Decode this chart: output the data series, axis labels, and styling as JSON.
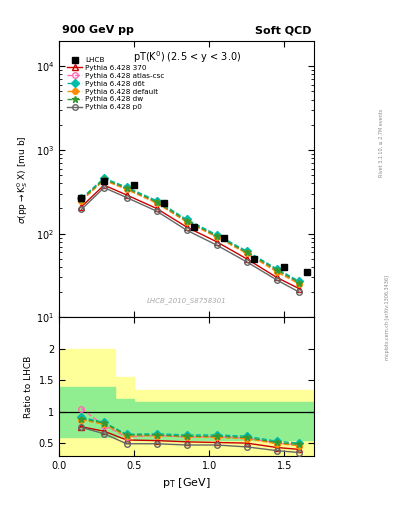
{
  "title_left": "900 GeV pp",
  "title_right": "Soft QCD",
  "subtitle": "pT(K¹) (2.5 < y < 3.0)",
  "ylabel_main": "σ(pp→K⁰_S X) [mu b]",
  "ylabel_ratio": "Ratio to LHCB",
  "xlabel": "p_T [GeV]",
  "watermark": "LHCB_2010_S8758301",
  "rivet_label": "Rivet 3.1.10, ≥ 2.7M events",
  "mcplots_label": "mcplots.cern.ch [arXiv:1306.3436]",
  "pt_centers": [
    0.15,
    0.3,
    0.45,
    0.65,
    0.85,
    1.05,
    1.25,
    1.45,
    1.6
  ],
  "lhcb_pt": [
    0.15,
    0.3,
    0.5,
    0.7,
    0.9,
    1.1,
    1.3,
    1.5,
    1.65
  ],
  "lhcb_sigma": [
    270,
    420,
    380,
    230,
    120,
    90,
    50,
    40,
    35
  ],
  "p370_sigma": [
    210,
    380,
    290,
    200,
    120,
    80,
    50,
    30,
    22
  ],
  "atlas_sigma": [
    250,
    440,
    340,
    235,
    140,
    93,
    59,
    36,
    26
  ],
  "d6t_sigma": [
    265,
    460,
    360,
    248,
    148,
    97,
    62,
    38,
    27
  ],
  "default_sigma": [
    248,
    435,
    338,
    232,
    138,
    91,
    58,
    35,
    25
  ],
  "dw_sigma": [
    258,
    448,
    350,
    240,
    143,
    94,
    60,
    37,
    26
  ],
  "p0_sigma": [
    195,
    355,
    270,
    186,
    110,
    73,
    46,
    28,
    20
  ],
  "p370_ratio": [
    0.76,
    0.69,
    0.55,
    0.54,
    0.52,
    0.51,
    0.5,
    0.43,
    0.4
  ],
  "atlas_ratio": [
    1.05,
    0.78,
    0.6,
    0.62,
    0.6,
    0.6,
    0.58,
    0.5,
    0.47
  ],
  "d6t_ratio": [
    0.91,
    0.83,
    0.64,
    0.65,
    0.63,
    0.63,
    0.61,
    0.53,
    0.5
  ],
  "default_ratio": [
    0.87,
    0.8,
    0.61,
    0.62,
    0.6,
    0.59,
    0.57,
    0.49,
    0.46
  ],
  "dw_ratio": [
    0.89,
    0.82,
    0.63,
    0.63,
    0.61,
    0.61,
    0.59,
    0.51,
    0.48
  ],
  "p0_ratio": [
    0.75,
    0.65,
    0.49,
    0.49,
    0.47,
    0.47,
    0.44,
    0.38,
    0.35
  ],
  "colors": {
    "p370": "#cc0000",
    "atlas": "#ff69b4",
    "d6t": "#00bbaa",
    "default": "#ff8c00",
    "dw": "#339933",
    "p0": "#666666"
  },
  "ylim_main": [
    10,
    20000
  ],
  "ylim_ratio": [
    0.3,
    2.5
  ],
  "xlim": [
    0.0,
    1.7
  ]
}
